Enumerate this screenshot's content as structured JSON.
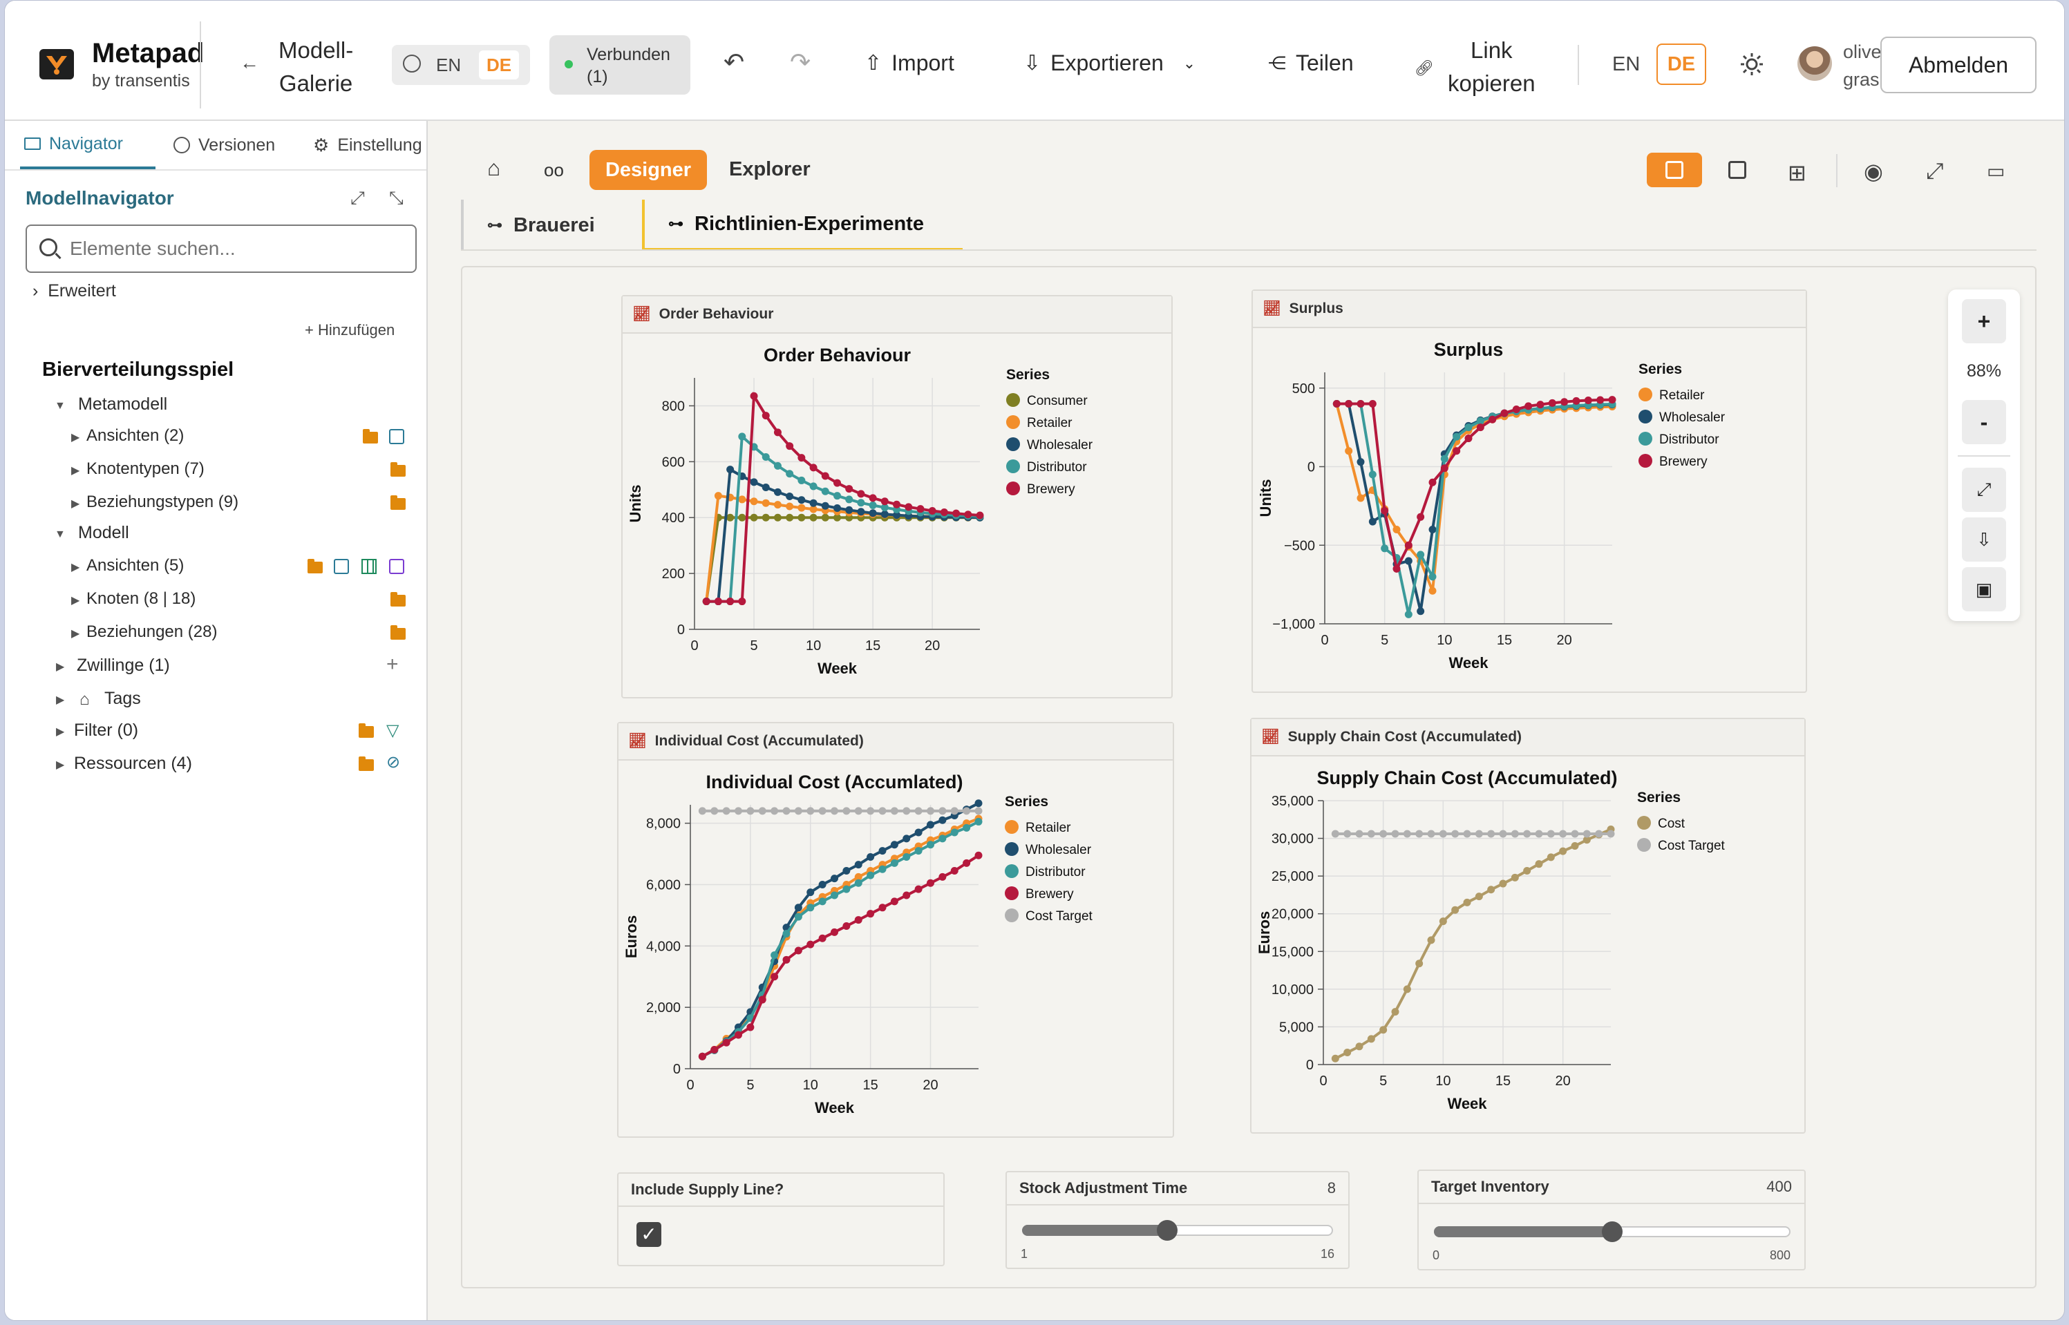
{
  "app": {
    "name": "Metapad",
    "by": "by transentis"
  },
  "header": {
    "back_label_1": "Modell-",
    "back_label_2": "Galerie",
    "lang_en": "EN",
    "lang_de": "DE",
    "status_1": "Verbunden",
    "status_2": "(1)",
    "import": "Import",
    "export": "Exportieren",
    "share": "Teilen",
    "copy_1": "Link",
    "copy_2": "kopieren",
    "lang2_en": "EN",
    "lang2_de": "DE",
    "user_1": "oliver",
    "user_2": "grasl",
    "logout": "Abmelden"
  },
  "sidebar": {
    "tabs": [
      "Navigator",
      "Versionen",
      "Einstellung"
    ],
    "title": "Modellnavigator",
    "search_placeholder": "Elemente suchen...",
    "advanced": "Erweitert",
    "add": "+ Hinzufügen",
    "root": "Bierverteilungsspiel",
    "metamodel": "Metamodell",
    "meta_items": [
      "Ansichten (2)",
      "Knotentypen (7)",
      "Beziehungstypen (9)"
    ],
    "model": "Modell",
    "model_items": [
      "Ansichten (5)",
      "Knoten (8 | 18)",
      "Beziehungen (28)"
    ],
    "other": [
      "Zwillinge (1)",
      "Tags",
      "Filter (0)",
      "Ressourcen (4)"
    ]
  },
  "toolbar": {
    "designer": "Designer",
    "explorer": "Explorer"
  },
  "doc_tabs": [
    "Brauerei",
    "Richtlinien-Experimente"
  ],
  "zoom": {
    "plus": "+",
    "level": "88%",
    "minus": "-"
  },
  "colors": {
    "orange": "#f28c28",
    "consumer": "#7f7f22",
    "retailer": "#f28e2b",
    "wholesaler": "#1f4e6e",
    "distributor": "#3b9a9a",
    "brewery": "#b5193d",
    "target": "#b0b0b0",
    "cost": "#b09a66"
  },
  "controls": {
    "supply_label": "Include Supply Line?",
    "supply_checked": true,
    "stock_label": "Stock Adjustment Time",
    "stock_value": "8",
    "stock_min": "1",
    "stock_max": "16",
    "stock_frac": 0.467,
    "target_label": "Target Inventory",
    "target_value": "400",
    "target_min": "0",
    "target_max": "800",
    "target_frac": 0.5
  },
  "chart_data": [
    {
      "id": "order",
      "panel": "Order Behaviour",
      "title": "Order Behaviour",
      "type": "line",
      "xlabel": "Week",
      "ylabel": "Units",
      "xlim": [
        0,
        24
      ],
      "ylim": [
        0,
        900
      ],
      "xticks": [
        0,
        5,
        10,
        15,
        20
      ],
      "yticks": [
        0,
        200,
        400,
        600,
        800
      ],
      "ytick_labels": [
        "0",
        "200",
        "400",
        "600",
        "800"
      ],
      "legend_title": "Series",
      "series": [
        {
          "name": "Consumer",
          "color": "#7f7f22",
          "x": [
            1,
            2,
            3,
            4,
            5,
            6,
            7,
            8,
            9,
            10,
            11,
            12,
            13,
            14,
            15,
            16,
            17,
            18,
            19,
            20,
            21,
            22,
            23,
            24
          ],
          "y": [
            100,
            400,
            400,
            400,
            400,
            400,
            400,
            400,
            400,
            400,
            400,
            400,
            400,
            400,
            400,
            400,
            400,
            400,
            400,
            400,
            400,
            400,
            400,
            400
          ]
        },
        {
          "name": "Retailer",
          "color": "#f28e2b",
          "x": [
            1,
            2,
            3,
            4,
            5,
            6,
            7,
            8,
            9,
            10,
            11,
            12,
            13,
            14,
            15,
            16,
            17,
            18,
            19,
            20,
            21,
            22,
            23,
            24
          ],
          "y": [
            100,
            478,
            472,
            465,
            458,
            452,
            446,
            440,
            435,
            430,
            426,
            422,
            418,
            415,
            412,
            410,
            408,
            406,
            405,
            404,
            403,
            402,
            401,
            401
          ]
        },
        {
          "name": "Wholesaler",
          "color": "#1f4e6e",
          "x": [
            1,
            2,
            3,
            4,
            5,
            6,
            7,
            8,
            9,
            10,
            11,
            12,
            13,
            14,
            15,
            16,
            17,
            18,
            19,
            20,
            21,
            22,
            23,
            24
          ],
          "y": [
            100,
            100,
            572,
            548,
            527,
            508,
            491,
            476,
            463,
            452,
            442,
            434,
            427,
            421,
            416,
            412,
            409,
            406,
            404,
            403,
            402,
            401,
            401,
            400
          ]
        },
        {
          "name": "Distributor",
          "color": "#3b9a9a",
          "x": [
            1,
            2,
            3,
            4,
            5,
            6,
            7,
            8,
            9,
            10,
            11,
            12,
            13,
            14,
            15,
            16,
            17,
            18,
            19,
            20,
            21,
            22,
            23,
            24
          ],
          "y": [
            100,
            100,
            100,
            690,
            653,
            617,
            585,
            557,
            533,
            512,
            494,
            478,
            465,
            453,
            444,
            436,
            429,
            423,
            418,
            414,
            411,
            408,
            406,
            404
          ]
        },
        {
          "name": "Brewery",
          "color": "#b5193d",
          "x": [
            1,
            2,
            3,
            4,
            5,
            6,
            7,
            8,
            9,
            10,
            11,
            12,
            13,
            14,
            15,
            16,
            17,
            18,
            19,
            20,
            21,
            22,
            23,
            24
          ],
          "y": [
            100,
            100,
            100,
            100,
            835,
            765,
            705,
            656,
            614,
            579,
            549,
            524,
            503,
            485,
            470,
            458,
            447,
            438,
            431,
            424,
            419,
            415,
            411,
            408
          ]
        }
      ]
    },
    {
      "id": "surplus",
      "panel": "Surplus",
      "title": "Surplus",
      "type": "line",
      "xlabel": "Week",
      "ylabel": "Units",
      "xlim": [
        0,
        24
      ],
      "ylim": [
        -1000,
        600
      ],
      "xticks": [
        0,
        5,
        10,
        15,
        20
      ],
      "yticks": [
        -1000,
        -500,
        0,
        500
      ],
      "ytick_labels": [
        "−1,000",
        "−500",
        "0",
        "500"
      ],
      "legend_title": "Series",
      "series": [
        {
          "name": "Retailer",
          "color": "#f28e2b",
          "x": [
            1,
            2,
            3,
            4,
            5,
            6,
            7,
            8,
            9,
            10,
            11,
            12,
            13,
            14,
            15,
            16,
            17,
            18,
            19,
            20,
            21,
            22,
            23,
            24
          ],
          "y": [
            400,
            100,
            -200,
            -150,
            -270,
            -400,
            -510,
            -600,
            -790,
            -50,
            160,
            230,
            270,
            300,
            320,
            335,
            345,
            355,
            362,
            368,
            372,
            376,
            380,
            382
          ]
        },
        {
          "name": "Wholesaler",
          "color": "#1f4e6e",
          "x": [
            1,
            2,
            3,
            4,
            5,
            6,
            7,
            8,
            9,
            10,
            11,
            12,
            13,
            14,
            15,
            16,
            17,
            18,
            19,
            20,
            21,
            22,
            23,
            24
          ],
          "y": [
            400,
            400,
            30,
            -350,
            -300,
            -620,
            -600,
            -920,
            -400,
            80,
            200,
            260,
            295,
            320,
            340,
            352,
            362,
            370,
            377,
            382,
            386,
            390,
            393,
            395
          ]
        },
        {
          "name": "Distributor",
          "color": "#3b9a9a",
          "x": [
            1,
            2,
            3,
            4,
            5,
            6,
            7,
            8,
            9,
            10,
            11,
            12,
            13,
            14,
            15,
            16,
            17,
            18,
            19,
            20,
            21,
            22,
            23,
            24
          ],
          "y": [
            400,
            400,
            400,
            -50,
            -520,
            -580,
            -940,
            -560,
            -700,
            50,
            190,
            250,
            290,
            318,
            338,
            352,
            362,
            371,
            378,
            384,
            389,
            392,
            395,
            398
          ]
        },
        {
          "name": "Brewery",
          "color": "#b5193d",
          "x": [
            1,
            2,
            3,
            4,
            5,
            6,
            7,
            8,
            9,
            10,
            11,
            12,
            13,
            14,
            15,
            16,
            17,
            18,
            19,
            20,
            21,
            22,
            23,
            24
          ],
          "y": [
            400,
            400,
            400,
            400,
            -280,
            -650,
            -500,
            -320,
            -100,
            -10,
            100,
            180,
            250,
            300,
            340,
            365,
            385,
            395,
            405,
            412,
            418,
            422,
            424,
            426
          ]
        }
      ]
    },
    {
      "id": "indiv",
      "panel": "Individual Cost (Accumulated)",
      "title": "Individual Cost (Accumlated)",
      "type": "line",
      "xlabel": "Week",
      "ylabel": "Euros",
      "xlim": [
        0,
        24
      ],
      "ylim": [
        0,
        8600
      ],
      "xticks": [
        0,
        5,
        10,
        15,
        20
      ],
      "yticks": [
        0,
        2000,
        4000,
        6000,
        8000
      ],
      "ytick_labels": [
        "0",
        "2,000",
        "4,000",
        "6,000",
        "8,000"
      ],
      "legend_title": "Series",
      "series": [
        {
          "name": "Retailer",
          "color": "#f28e2b",
          "x": [
            1,
            2,
            3,
            4,
            5,
            6,
            7,
            8,
            9,
            10,
            11,
            12,
            13,
            14,
            15,
            16,
            17,
            18,
            19,
            20,
            21,
            22,
            23,
            24
          ],
          "y": [
            400,
            620,
            980,
            1250,
            1700,
            2350,
            3350,
            4300,
            5000,
            5400,
            5600,
            5800,
            6000,
            6250,
            6450,
            6650,
            6850,
            7050,
            7250,
            7450,
            7600,
            7800,
            8000,
            8150
          ]
        },
        {
          "name": "Wholesaler",
          "color": "#1f4e6e",
          "x": [
            1,
            2,
            3,
            4,
            5,
            6,
            7,
            8,
            9,
            10,
            11,
            12,
            13,
            14,
            15,
            16,
            17,
            18,
            19,
            20,
            21,
            22,
            23,
            24
          ],
          "y": [
            400,
            600,
            900,
            1350,
            1850,
            2650,
            3500,
            4600,
            5250,
            5750,
            6000,
            6200,
            6450,
            6650,
            6900,
            7100,
            7300,
            7500,
            7700,
            7950,
            8100,
            8250,
            8450,
            8650
          ]
        },
        {
          "name": "Distributor",
          "color": "#3b9a9a",
          "x": [
            1,
            2,
            3,
            4,
            5,
            6,
            7,
            8,
            9,
            10,
            11,
            12,
            13,
            14,
            15,
            16,
            17,
            18,
            19,
            20,
            21,
            22,
            23,
            24
          ],
          "y": [
            400,
            600,
            880,
            1200,
            1650,
            2400,
            3700,
            4400,
            4950,
            5250,
            5450,
            5650,
            5850,
            6050,
            6300,
            6500,
            6700,
            6900,
            7100,
            7300,
            7500,
            7700,
            7850,
            8050
          ]
        },
        {
          "name": "Brewery",
          "color": "#b5193d",
          "x": [
            1,
            2,
            3,
            4,
            5,
            6,
            7,
            8,
            9,
            10,
            11,
            12,
            13,
            14,
            15,
            16,
            17,
            18,
            19,
            20,
            21,
            22,
            23,
            24
          ],
          "y": [
            400,
            620,
            850,
            1100,
            1350,
            2250,
            3000,
            3550,
            3850,
            4050,
            4250,
            4450,
            4650,
            4850,
            5050,
            5250,
            5450,
            5650,
            5850,
            6050,
            6250,
            6450,
            6700,
            6950
          ]
        },
        {
          "name": "Cost Target",
          "color": "#b0b0b0",
          "x": [
            1,
            2,
            3,
            4,
            5,
            6,
            7,
            8,
            9,
            10,
            11,
            12,
            13,
            14,
            15,
            16,
            17,
            18,
            19,
            20,
            21,
            22,
            23,
            24
          ],
          "y": [
            8400,
            8400,
            8400,
            8400,
            8400,
            8400,
            8400,
            8400,
            8400,
            8400,
            8400,
            8400,
            8400,
            8400,
            8400,
            8400,
            8400,
            8400,
            8400,
            8400,
            8400,
            8400,
            8400,
            8400
          ]
        }
      ]
    },
    {
      "id": "supply",
      "panel": "Supply Chain Cost (Accumulated)",
      "title": "Supply Chain Cost (Accumulated)",
      "type": "line",
      "xlabel": "Week",
      "ylabel": "Euros",
      "xlim": [
        0,
        24
      ],
      "ylim": [
        0,
        35000
      ],
      "xticks": [
        0,
        5,
        10,
        15,
        20
      ],
      "yticks": [
        0,
        5000,
        10000,
        15000,
        20000,
        25000,
        30000,
        35000
      ],
      "ytick_labels": [
        "0",
        "5,000",
        "10,000",
        "15,000",
        "20,000",
        "25,000",
        "30,000",
        "35,000"
      ],
      "legend_title": "Series",
      "series": [
        {
          "name": "Cost",
          "color": "#b09a66",
          "x": [
            1,
            2,
            3,
            4,
            5,
            6,
            7,
            8,
            9,
            10,
            11,
            12,
            13,
            14,
            15,
            16,
            17,
            18,
            19,
            20,
            21,
            22,
            23,
            24
          ],
          "y": [
            800,
            1600,
            2400,
            3400,
            4600,
            7000,
            10000,
            13400,
            16500,
            19000,
            20500,
            21500,
            22300,
            23200,
            24000,
            24800,
            25700,
            26600,
            27500,
            28300,
            29000,
            29800,
            30500,
            31200
          ]
        },
        {
          "name": "Cost Target",
          "color": "#b0b0b0",
          "x": [
            1,
            2,
            3,
            4,
            5,
            6,
            7,
            8,
            9,
            10,
            11,
            12,
            13,
            14,
            15,
            16,
            17,
            18,
            19,
            20,
            21,
            22,
            23,
            24
          ],
          "y": [
            30600,
            30600,
            30600,
            30600,
            30600,
            30600,
            30600,
            30600,
            30600,
            30600,
            30600,
            30600,
            30600,
            30600,
            30600,
            30600,
            30600,
            30600,
            30600,
            30600,
            30600,
            30600,
            30600,
            30600
          ]
        }
      ]
    }
  ]
}
